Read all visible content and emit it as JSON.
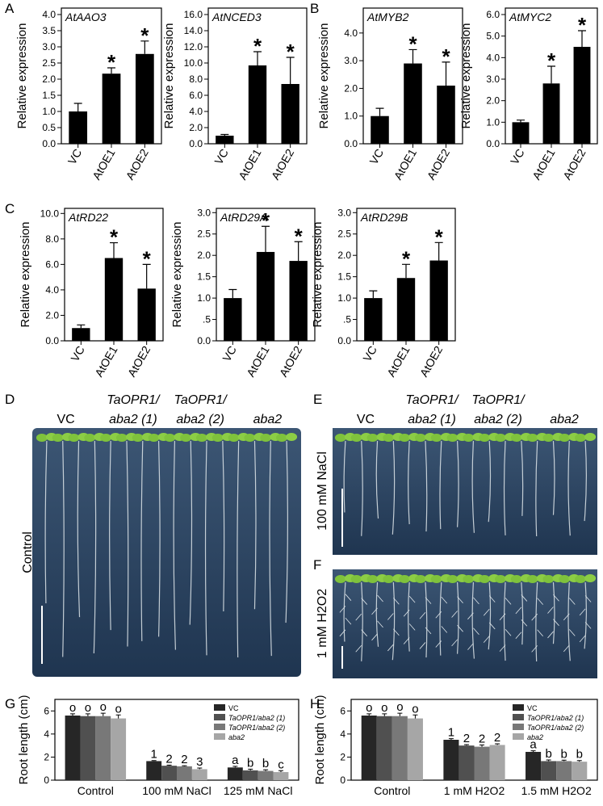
{
  "panels": {
    "A": "A",
    "B": "B",
    "C": "C",
    "D": "D",
    "E": "E",
    "F": "F",
    "G": "G",
    "H": "H"
  },
  "photos": {
    "D": {
      "condition": "Control",
      "groups": [
        [
          "VC"
        ],
        [
          "TaOPR1/",
          "aba2 (1)"
        ],
        [
          "TaOPR1/",
          "aba2 (2)"
        ],
        [
          "aba2"
        ]
      ]
    },
    "E": {
      "condition": "100 mM NaCl",
      "groups": [
        [
          "VC"
        ],
        [
          "TaOPR1/",
          "aba2 (1)"
        ],
        [
          "TaOPR1/",
          "aba2 (2)"
        ],
        [
          "aba2"
        ]
      ]
    },
    "F": {
      "condition": "1 mM H2O2"
    }
  },
  "chart_data": [
    {
      "type": "bar",
      "title": "AtAAO3",
      "y_label": "Relative expression",
      "categories": [
        "VC",
        "AtOE1",
        "AtOE2"
      ],
      "values": [
        1.0,
        2.17,
        2.78
      ],
      "errors": [
        0.25,
        0.18,
        0.4
      ],
      "stars": [
        null,
        "*",
        "*"
      ],
      "color": "#000000",
      "ylim": [
        0,
        4.2
      ],
      "yticks": [
        {
          "value": 0,
          "label": "0.0"
        },
        {
          "value": 0.5,
          "label": "0.5"
        },
        {
          "value": 1,
          "label": "1.0"
        },
        {
          "value": 1.5,
          "label": "1.5"
        },
        {
          "value": 2,
          "label": "2.0"
        },
        {
          "value": 2.5,
          "label": "2.5"
        },
        {
          "value": 3,
          "label": "3.0"
        },
        {
          "value": 3.5,
          "label": "3.5"
        },
        {
          "value": 4,
          "label": "4.0"
        }
      ]
    },
    {
      "type": "bar",
      "title": "AtNCED3",
      "y_label": "Relative expression",
      "categories": [
        "VC",
        "AtOE1",
        "AtOE2"
      ],
      "values": [
        1.0,
        9.7,
        7.4
      ],
      "errors": [
        0.15,
        1.7,
        3.3
      ],
      "stars": [
        null,
        "*",
        "*"
      ],
      "color": "#000000",
      "ylim": [
        0,
        16.8
      ],
      "yticks": [
        {
          "value": 0,
          "label": "0.0"
        },
        {
          "value": 2,
          "label": "2.0"
        },
        {
          "value": 4,
          "label": "4.0"
        },
        {
          "value": 6,
          "label": "6.0"
        },
        {
          "value": 8,
          "label": "8.0"
        },
        {
          "value": 10,
          "label": "10.0"
        },
        {
          "value": 12,
          "label": "12.0"
        },
        {
          "value": 14,
          "label": "14.0"
        },
        {
          "value": 16,
          "label": "16.0"
        }
      ]
    },
    {
      "type": "bar",
      "title": "AtMYB2",
      "y_label": "Relative expression",
      "categories": [
        "VC",
        "AtOE1",
        "AtOE2"
      ],
      "values": [
        1.0,
        2.9,
        2.1
      ],
      "errors": [
        0.28,
        0.5,
        0.85
      ],
      "stars": [
        null,
        "*",
        "*"
      ],
      "color": "#000000",
      "ylim": [
        0,
        4.9
      ],
      "yticks": [
        {
          "value": 0,
          "label": "0.0"
        },
        {
          "value": 1,
          "label": "1.0"
        },
        {
          "value": 2,
          "label": "2.0"
        },
        {
          "value": 3,
          "label": "3.0"
        },
        {
          "value": 4,
          "label": "4.0"
        }
      ]
    },
    {
      "type": "bar",
      "title": "AtMYC2",
      "y_label": "Relative expression",
      "categories": [
        "VC",
        "AtOE1",
        "AtOE2"
      ],
      "values": [
        1.0,
        2.8,
        4.5
      ],
      "errors": [
        0.1,
        0.8,
        0.75
      ],
      "stars": [
        null,
        "*",
        "*"
      ],
      "color": "#000000",
      "ylim": [
        0,
        6.3
      ],
      "yticks": [
        {
          "value": 0,
          "label": "0.0"
        },
        {
          "value": 1,
          "label": "1.0"
        },
        {
          "value": 2,
          "label": "2.0"
        },
        {
          "value": 3,
          "label": "3.0"
        },
        {
          "value": 4,
          "label": "4.0"
        },
        {
          "value": 5,
          "label": "5.0"
        },
        {
          "value": 6,
          "label": "6.0"
        }
      ]
    },
    {
      "type": "bar",
      "title": "AtRD22",
      "y_label": "Relative expression",
      "categories": [
        "VC",
        "AtOE1",
        "AtOE2"
      ],
      "values": [
        1.0,
        6.5,
        4.1
      ],
      "errors": [
        0.25,
        1.2,
        1.9
      ],
      "stars": [
        null,
        "*",
        "*"
      ],
      "color": "#000000",
      "ylim": [
        0,
        10.4
      ],
      "yticks": [
        {
          "value": 0,
          "label": "0.0"
        },
        {
          "value": 2,
          "label": "2.0"
        },
        {
          "value": 4,
          "label": "4.0"
        },
        {
          "value": 6,
          "label": "6.0"
        },
        {
          "value": 8,
          "label": "8.0"
        },
        {
          "value": 10,
          "label": "10.0"
        }
      ]
    },
    {
      "type": "bar",
      "title": "AtRD29A",
      "y_label": "Relative expression",
      "categories": [
        "VC",
        "AtOE1",
        "AtOE2"
      ],
      "values": [
        1.0,
        2.08,
        1.87
      ],
      "errors": [
        0.2,
        0.6,
        0.45
      ],
      "stars": [
        null,
        "*",
        "*"
      ],
      "color": "#000000",
      "ylim": [
        0,
        3.1
      ],
      "yticks": [
        {
          "value": 0,
          "label": "0.0"
        },
        {
          "value": 0.5,
          "label": ".5"
        },
        {
          "value": 1,
          "label": "1.0"
        },
        {
          "value": 1.5,
          "label": "1.5"
        },
        {
          "value": 2,
          "label": "2.0"
        },
        {
          "value": 2.5,
          "label": "2.5"
        },
        {
          "value": 3,
          "label": "3.0"
        }
      ]
    },
    {
      "type": "bar",
      "title": "AtRD29B",
      "y_label": "Relative expression",
      "categories": [
        "VC",
        "AtOE1",
        "AtOE2"
      ],
      "values": [
        1.0,
        1.47,
        1.88
      ],
      "errors": [
        0.17,
        0.32,
        0.42
      ],
      "stars": [
        null,
        "*",
        "*"
      ],
      "color": "#000000",
      "ylim": [
        0,
        3.1
      ],
      "yticks": [
        {
          "value": 0,
          "label": "0.0"
        },
        {
          "value": 0.5,
          "label": ".5"
        },
        {
          "value": 1,
          "label": "1.0"
        },
        {
          "value": 1.5,
          "label": "1.5"
        },
        {
          "value": 2,
          "label": "2.0"
        },
        {
          "value": 2.5,
          "label": "2.5"
        },
        {
          "value": 3,
          "label": "3.0"
        }
      ]
    },
    {
      "type": "grouped_bar",
      "y_label": "Root length (cm)",
      "categories": [
        "Control",
        "100 mM NaCl",
        "125 mM NaCl"
      ],
      "legend": "upper right",
      "ylim": [
        0,
        7
      ],
      "yticks": [
        0,
        2,
        4,
        6
      ],
      "series": [
        {
          "name": "VC",
          "color": "#262626",
          "values": [
            5.6,
            1.65,
            1.1
          ],
          "errors": [
            0.15,
            0.05,
            0.1
          ],
          "letters": [
            "o",
            "1",
            "a"
          ]
        },
        {
          "name": "TaOPR1/aba2 (1)",
          "color": "#505050",
          "values": [
            5.55,
            1.25,
            0.85
          ],
          "errors": [
            0.2,
            0.05,
            0.1
          ],
          "letters": [
            "o",
            "2",
            "b"
          ]
        },
        {
          "name": "TaOPR1/aba2 (2)",
          "color": "#787878",
          "values": [
            5.55,
            1.2,
            0.8
          ],
          "errors": [
            0.25,
            0.05,
            0.1
          ],
          "letters": [
            "o",
            "2",
            "b"
          ]
        },
        {
          "name": "aba2",
          "color": "#a6a6a6",
          "values": [
            5.35,
            0.95,
            0.7
          ],
          "errors": [
            0.3,
            0.1,
            0.12
          ],
          "letters": [
            "o",
            "3",
            "c"
          ]
        }
      ]
    },
    {
      "type": "grouped_bar",
      "y_label": "Root length (cm)",
      "categories": [
        "Control",
        "1 mM H2O2",
        "1.5 mM H2O2"
      ],
      "legend": "upper right",
      "ylim": [
        0,
        7
      ],
      "yticks": [
        0,
        2,
        4,
        6
      ],
      "series": [
        {
          "name": "VC",
          "color": "#262626",
          "values": [
            5.6,
            3.5,
            2.45
          ],
          "errors": [
            0.15,
            0.1,
            0.1
          ],
          "letters": [
            "o",
            "1",
            "a"
          ]
        },
        {
          "name": "TaOPR1/aba2 (1)",
          "color": "#505050",
          "values": [
            5.55,
            3.0,
            1.65
          ],
          "errors": [
            0.2,
            0.08,
            0.1
          ],
          "letters": [
            "o",
            "2",
            "b"
          ]
        },
        {
          "name": "TaOPR1/aba2 (2)",
          "color": "#787878",
          "values": [
            5.55,
            2.9,
            1.65
          ],
          "errors": [
            0.25,
            0.15,
            0.08
          ],
          "letters": [
            "o",
            "2",
            "b"
          ]
        },
        {
          "name": "aba2",
          "color": "#a6a6a6",
          "values": [
            5.35,
            3.05,
            1.6
          ],
          "errors": [
            0.3,
            0.1,
            0.1
          ],
          "letters": [
            "o",
            "2",
            "b"
          ]
        }
      ]
    }
  ]
}
